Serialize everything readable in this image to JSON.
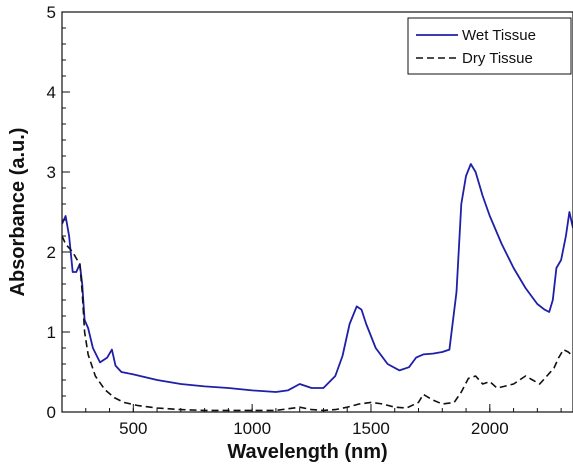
{
  "chart_data": {
    "type": "line",
    "title": "",
    "xlabel": "Wavelength (nm)",
    "ylabel": "Absorbance (a.u.)",
    "xlim": [
      200,
      2350
    ],
    "ylim": [
      0,
      5
    ],
    "x_ticks": [
      500,
      1000,
      1500,
      2000
    ],
    "y_ticks": [
      0,
      1,
      2,
      3,
      4,
      5
    ],
    "grid": false,
    "legend": "top-right",
    "series": [
      {
        "name": "Wet Tissue",
        "color": "#1f1fa8",
        "style": "solid",
        "x": [
          200,
          215,
          230,
          245,
          260,
          275,
          285,
          295,
          310,
          330,
          360,
          390,
          410,
          425,
          450,
          500,
          600,
          700,
          800,
          900,
          1000,
          1100,
          1150,
          1200,
          1250,
          1300,
          1350,
          1380,
          1410,
          1440,
          1460,
          1480,
          1520,
          1570,
          1620,
          1660,
          1690,
          1720,
          1760,
          1800,
          1830,
          1860,
          1880,
          1900,
          1920,
          1940,
          1970,
          2000,
          2050,
          2100,
          2150,
          2200,
          2230,
          2250,
          2265,
          2280,
          2300,
          2320,
          2335,
          2350
        ],
        "values": [
          2.35,
          2.45,
          2.2,
          1.75,
          1.75,
          1.85,
          1.6,
          1.15,
          1.05,
          0.8,
          0.62,
          0.68,
          0.78,
          0.58,
          0.5,
          0.47,
          0.4,
          0.35,
          0.32,
          0.3,
          0.27,
          0.25,
          0.27,
          0.35,
          0.3,
          0.3,
          0.45,
          0.7,
          1.1,
          1.32,
          1.28,
          1.1,
          0.8,
          0.6,
          0.52,
          0.56,
          0.68,
          0.72,
          0.73,
          0.75,
          0.78,
          1.5,
          2.6,
          2.95,
          3.1,
          3.0,
          2.7,
          2.45,
          2.1,
          1.8,
          1.55,
          1.35,
          1.28,
          1.25,
          1.4,
          1.8,
          1.9,
          2.2,
          2.5,
          2.3
        ]
      },
      {
        "name": "Dry Tissue",
        "color": "#111111",
        "style": "dashed",
        "x": [
          200,
          215,
          230,
          245,
          260,
          275,
          285,
          295,
          310,
          340,
          380,
          420,
          460,
          520,
          600,
          700,
          800,
          900,
          1000,
          1100,
          1150,
          1200,
          1250,
          1300,
          1350,
          1400,
          1450,
          1500,
          1550,
          1600,
          1650,
          1700,
          1720,
          1760,
          1800,
          1850,
          1880,
          1910,
          1940,
          1970,
          2000,
          2030,
          2060,
          2100,
          2150,
          2180,
          2210,
          2240,
          2270,
          2290,
          2310,
          2330,
          2350
        ],
        "values": [
          2.2,
          2.1,
          2.05,
          2.0,
          1.92,
          1.85,
          1.5,
          1.0,
          0.72,
          0.45,
          0.28,
          0.18,
          0.12,
          0.08,
          0.05,
          0.03,
          0.02,
          0.02,
          0.02,
          0.02,
          0.04,
          0.06,
          0.03,
          0.02,
          0.03,
          0.06,
          0.1,
          0.12,
          0.1,
          0.06,
          0.05,
          0.12,
          0.22,
          0.15,
          0.1,
          0.12,
          0.25,
          0.42,
          0.45,
          0.35,
          0.38,
          0.3,
          0.32,
          0.35,
          0.45,
          0.4,
          0.35,
          0.45,
          0.55,
          0.68,
          0.78,
          0.75,
          0.7
        ]
      }
    ]
  }
}
